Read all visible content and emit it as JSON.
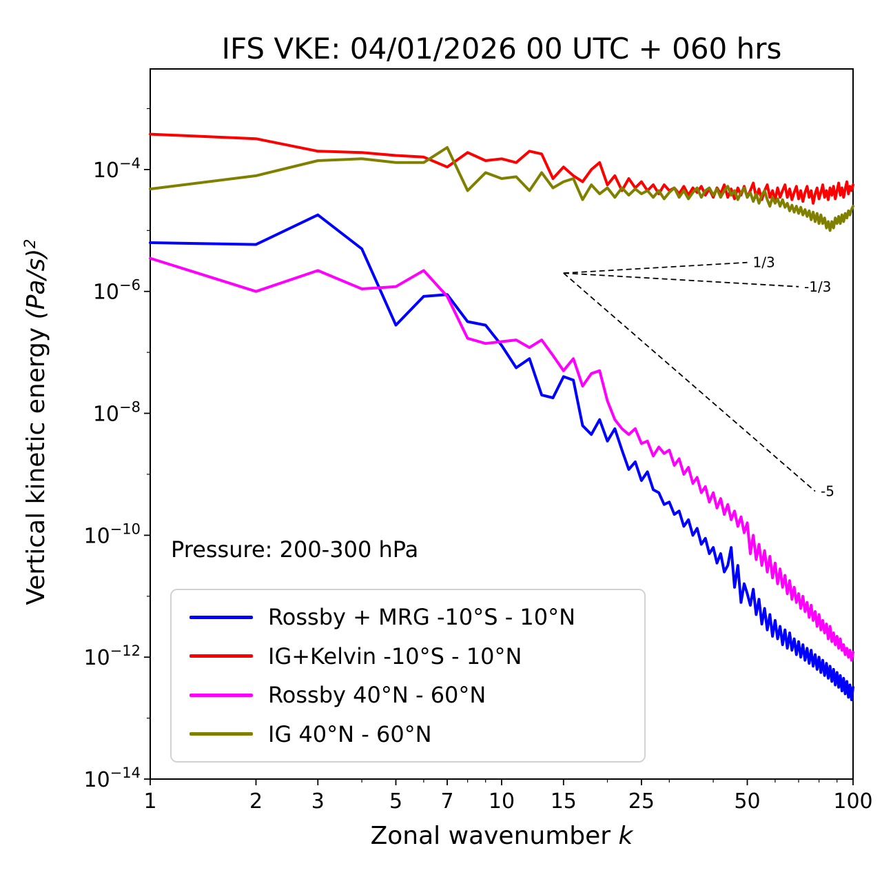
{
  "chart": {
    "title": "IFS VKE: 04/01/2026 00 UTC + 060 hrs",
    "annotation": "Pressure: 200-300 hPa",
    "xlabel_prefix": "Zonal wavenumber ",
    "xlabel_var": "k",
    "ylabel_prefix": "Vertical kinetic energy ",
    "ylabel_math": "(Pa/s)",
    "ylabel_exponent": "2"
  },
  "chart_data": {
    "type": "line",
    "title": "IFS VKE: 04/01/2026 00 UTC + 060 hrs",
    "xlabel": "Zonal wavenumber k",
    "ylabel": "Vertical kinetic energy (Pa/s)^2",
    "x_scale": "log",
    "y_scale": "log",
    "xlim": [
      1,
      100
    ],
    "ylim_log10": [
      -14,
      -2.35
    ],
    "grid": false,
    "legend_position": "lower left",
    "x_ticks": [
      1,
      2,
      3,
      5,
      7,
      10,
      15,
      25,
      50,
      100
    ],
    "x_minor_ticks": [
      4,
      6,
      8,
      9,
      20,
      30,
      40,
      60,
      70,
      80,
      90
    ],
    "y_tick_exponents": [
      -14,
      -12,
      -10,
      -8,
      -6,
      -4
    ],
    "y_minor_tick_exponents": [
      -13,
      -11,
      -9,
      -7,
      -5,
      -3
    ],
    "x": [
      1,
      2,
      3,
      4,
      5,
      6,
      7,
      8,
      9,
      10,
      11,
      12,
      13,
      14,
      15,
      16,
      17,
      18,
      19,
      20,
      21,
      22,
      23,
      24,
      25,
      26,
      27,
      28,
      29,
      30,
      31,
      32,
      33,
      34,
      35,
      36,
      37,
      38,
      39,
      40,
      41,
      42,
      43,
      44,
      45,
      46,
      47,
      48,
      49,
      50,
      51,
      52,
      53,
      54,
      55,
      56,
      57,
      58,
      59,
      60,
      61,
      62,
      63,
      64,
      65,
      66,
      67,
      68,
      69,
      70,
      71,
      72,
      73,
      74,
      75,
      76,
      77,
      78,
      79,
      80,
      81,
      82,
      83,
      84,
      85,
      86,
      87,
      88,
      89,
      90,
      91,
      92,
      93,
      94,
      95,
      96,
      97,
      98,
      99,
      100
    ],
    "series": [
      {
        "name": "Rossby + MRG -10°S - 10°N",
        "color": "#0000ff",
        "values": [
          6.3e-06,
          5.9e-06,
          1.8e-05,
          5e-06,
          2.8e-07,
          8.3e-07,
          8.9e-07,
          3.2e-07,
          2.8e-07,
          1.3e-07,
          5.6e-08,
          7.9e-08,
          2e-08,
          1.8e-08,
          4e-08,
          3.5e-08,
          6.3e-09,
          4.5e-09,
          7.9e-09,
          3.5e-09,
          5.6e-09,
          2.5e-09,
          1.2e-09,
          1.6e-09,
          7.9e-10,
          1.1e-09,
          5.6e-10,
          5e-10,
          3.2e-10,
          3.5e-10,
          2.2e-10,
          2.5e-10,
          1.4e-10,
          1.8e-10,
          1e-10,
          1.3e-10,
          7.1e-11,
          8.9e-11,
          5e-11,
          6.3e-11,
          3.5e-11,
          5e-11,
          2.5e-11,
          3.2e-11,
          6.3e-11,
          1.4e-11,
          3.2e-11,
          7.9e-12,
          1.6e-11,
          1.1e-11,
          7.1e-12,
          1.3e-11,
          5e-12,
          8.9e-12,
          3.5e-12,
          6.3e-12,
          2.8e-12,
          5e-12,
          2.2e-12,
          4e-12,
          2e-12,
          3.2e-12,
          1.6e-12,
          2.8e-12,
          1.4e-12,
          2.5e-12,
          1.3e-12,
          2e-12,
          1.1e-12,
          1.8e-12,
          1e-12,
          1.6e-12,
          8.9e-13,
          1.4e-12,
          7.9e-13,
          1.3e-12,
          7.1e-13,
          1.1e-12,
          6.3e-13,
          1e-12,
          5.6e-13,
          8.9e-13,
          5e-13,
          7.9e-13,
          4.5e-13,
          7.1e-13,
          4e-13,
          6.3e-13,
          3.5e-13,
          5.6e-13,
          3.2e-13,
          5e-13,
          2.8e-13,
          4.5e-13,
          2.5e-13,
          4e-13,
          2.2e-13,
          3.5e-13,
          2e-13,
          3.2e-13
        ]
      },
      {
        "name": "IG+Kelvin -10°S - 10°N",
        "color": "#ff0000",
        "values": [
          0.00038,
          0.00032,
          0.0002,
          0.00019,
          0.00017,
          0.00016,
          0.00011,
          0.00019,
          0.00014,
          0.00015,
          0.00013,
          0.0002,
          0.00018,
          7.1e-05,
          0.00011,
          7.9e-05,
          6.3e-05,
          0.0001,
          0.00013,
          5.6e-05,
          7.9e-05,
          4.5e-05,
          7.1e-05,
          5e-05,
          6.3e-05,
          4.5e-05,
          5.6e-05,
          4e-05,
          5.6e-05,
          4.5e-05,
          5e-05,
          4e-05,
          5.3e-05,
          3.8e-05,
          5e-05,
          4.2e-05,
          5.3e-05,
          3.8e-05,
          4.8e-05,
          3.5e-05,
          5e-05,
          4e-05,
          5.6e-05,
          3.5e-05,
          4.8e-05,
          3.3e-05,
          5e-05,
          3.8e-05,
          5.3e-05,
          3.5e-05,
          4.5e-05,
          6e-05,
          3.5e-05,
          4.8e-05,
          3.2e-05,
          4.5e-05,
          5.6e-05,
          3.5e-05,
          4.5e-05,
          3.2e-05,
          5e-05,
          3.5e-05,
          4.5e-05,
          5.6e-05,
          3.5e-05,
          4.8e-05,
          3.2e-05,
          4.2e-05,
          5.3e-05,
          3.3e-05,
          4.5e-05,
          3e-05,
          4.2e-05,
          5.3e-05,
          3.5e-05,
          4.5e-05,
          2.8e-05,
          4e-05,
          5e-05,
          3.3e-05,
          4.2e-05,
          5.6e-05,
          3.5e-05,
          4.5e-05,
          3.2e-05,
          5e-05,
          3.8e-05,
          5.3e-05,
          3.3e-05,
          4.5e-05,
          6e-05,
          3.8e-05,
          5e-05,
          3.5e-05,
          4.8e-05,
          6.3e-05,
          4e-05,
          5.3e-05,
          4.5e-05,
          5.6e-05
        ]
      },
      {
        "name": "Rossby 40°N - 60°N",
        "color": "#ff00ff",
        "values": [
          3.5e-06,
          1e-06,
          2.2e-06,
          1.1e-06,
          1.2e-06,
          2.2e-06,
          8.3e-07,
          1.7e-07,
          1.4e-07,
          1.5e-07,
          1.6e-07,
          1.2e-07,
          1.6e-07,
          8.9e-08,
          5e-08,
          7.9e-08,
          2.8e-08,
          4.5e-08,
          5e-08,
          1.6e-08,
          7.9e-09,
          5.6e-09,
          4.5e-09,
          5.6e-09,
          3.2e-09,
          3.5e-09,
          2e-09,
          2.8e-09,
          2.2e-09,
          2.5e-09,
          1.4e-09,
          1.8e-09,
          1e-09,
          1.3e-09,
          7.1e-10,
          8.9e-10,
          5e-10,
          6.3e-10,
          3.5e-10,
          5e-10,
          2.8e-10,
          4e-10,
          2.2e-10,
          3.2e-10,
          1.8e-10,
          2.5e-10,
          1.4e-10,
          2e-10,
          1.1e-10,
          1.6e-10,
          5e-11,
          1e-10,
          4e-11,
          7.1e-11,
          3.2e-11,
          5.6e-11,
          2.5e-11,
          4.5e-11,
          2e-11,
          3.5e-11,
          1.6e-11,
          2.8e-11,
          1.4e-11,
          2.2e-11,
          1.1e-11,
          1.8e-11,
          8.9e-12,
          1.4e-11,
          7.9e-12,
          1.1e-11,
          6.3e-12,
          1e-11,
          5.6e-12,
          7.9e-12,
          4.5e-12,
          7.1e-12,
          4e-12,
          5.6e-12,
          3.2e-12,
          5e-12,
          2.8e-12,
          4e-12,
          2.5e-12,
          3.5e-12,
          2e-12,
          3.2e-12,
          1.8e-12,
          2.5e-12,
          1.6e-12,
          2.2e-12,
          1.4e-12,
          2e-12,
          1.3e-12,
          1.6e-12,
          1.1e-12,
          1.4e-12,
          1e-12,
          1.3e-12,
          8.9e-13,
          1.2e-12
        ]
      },
      {
        "name": "IG 40°N - 60°N",
        "color": "#808000",
        "values": [
          4.8e-05,
          7.9e-05,
          0.00014,
          0.00015,
          0.00013,
          0.00013,
          0.00023,
          4.5e-05,
          8.9e-05,
          7.1e-05,
          7.6e-05,
          4.5e-05,
          8.9e-05,
          5e-05,
          6.3e-05,
          7.1e-05,
          3.2e-05,
          5.6e-05,
          4e-05,
          5e-05,
          3.5e-05,
          5e-05,
          3.8e-05,
          4.8e-05,
          4e-05,
          4.5e-05,
          3.5e-05,
          4.5e-05,
          3.3e-05,
          4.2e-05,
          5e-05,
          3.5e-05,
          4.5e-05,
          3.3e-05,
          4.2e-05,
          5e-05,
          3.5e-05,
          4.5e-05,
          5e-05,
          3.8e-05,
          4.8e-05,
          3.5e-05,
          4.5e-05,
          5.3e-05,
          3.8e-05,
          4.5e-05,
          3.2e-05,
          4.2e-05,
          5e-05,
          3.5e-05,
          4.2e-05,
          3e-05,
          4e-05,
          2.8e-05,
          3.8e-05,
          4.5e-05,
          3.2e-05,
          2.5e-05,
          3.5e-05,
          2.8e-05,
          3.3e-05,
          2.5e-05,
          3.2e-05,
          2.4e-05,
          2.8e-05,
          2.1e-05,
          2.6e-05,
          2e-05,
          2.5e-05,
          1.9e-05,
          2.4e-05,
          1.8e-05,
          2.2e-05,
          1.7e-05,
          2.1e-05,
          1.5e-05,
          2e-05,
          1.4e-05,
          1.9e-05,
          1.3e-05,
          1.8e-05,
          1.3e-05,
          1.6e-05,
          1.1e-05,
          1.4e-05,
          1e-05,
          1.4e-05,
          1.1e-05,
          1.6e-05,
          1.3e-05,
          1.7e-05,
          1.3e-05,
          1.8e-05,
          1.4e-05,
          1.9e-05,
          1.6e-05,
          2.1e-05,
          1.8e-05,
          2.2e-05,
          2.5e-05
        ]
      }
    ],
    "reference_slopes": [
      {
        "label": "1/3",
        "slope": 0.3333,
        "k_start": 15,
        "k_end": 50,
        "y_start": 2e-06
      },
      {
        "label": "-1/3",
        "slope": -0.3333,
        "k_start": 15,
        "k_end": 70,
        "y_start": 2e-06
      },
      {
        "label": "-5",
        "slope": -5,
        "k_start": 15,
        "k_end": 78,
        "y_start": 2e-06
      }
    ]
  }
}
